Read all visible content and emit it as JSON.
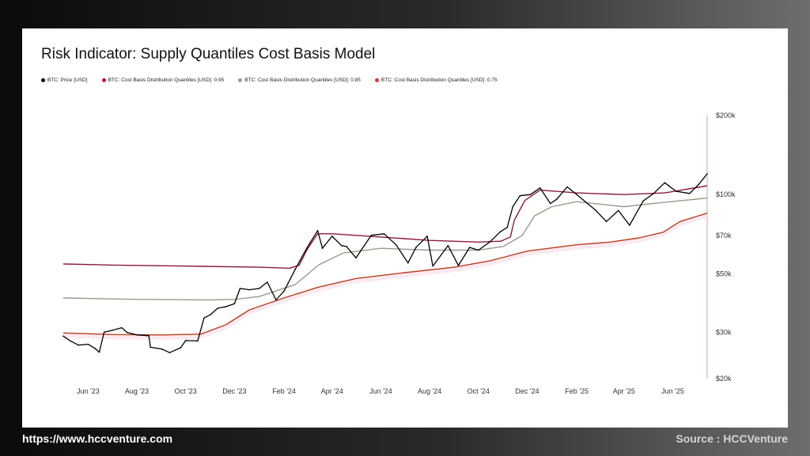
{
  "footer": {
    "url": "https://www.hccventure.com",
    "source": "Source : HCCVenture"
  },
  "colors": {
    "price": "#000000",
    "q95": "#8b1a3a",
    "q85": "#9a9a8a",
    "q75": "#b84020",
    "legend_q95": "#c0103a",
    "legend_q85": "#9a9a9a",
    "legend_q75": "#e83030"
  },
  "chart_data": {
    "type": "line",
    "title": "Risk Indicator: Supply Quantiles Cost Basis Model",
    "y_scale": "log",
    "ylim": [
      20000,
      200000
    ],
    "y_ticks": [
      {
        "value": 200000,
        "label": "$200k"
      },
      {
        "value": 100000,
        "label": "$100k"
      },
      {
        "value": 70000,
        "label": "$70k"
      },
      {
        "value": 50000,
        "label": "$50k"
      },
      {
        "value": 30000,
        "label": "$30k"
      },
      {
        "value": 20000,
        "label": "$20k"
      }
    ],
    "x_range": [
      "2023-05-01",
      "2025-07-14"
    ],
    "x_ticks": [
      {
        "date": "2023-06-01",
        "label": "Jun '23"
      },
      {
        "date": "2023-08-01",
        "label": "Aug '23"
      },
      {
        "date": "2023-10-01",
        "label": "Oct '23"
      },
      {
        "date": "2023-12-01",
        "label": "Dec '23"
      },
      {
        "date": "2024-02-01",
        "label": "Feb '24"
      },
      {
        "date": "2024-04-01",
        "label": "Apr '24"
      },
      {
        "date": "2024-06-01",
        "label": "Jun '24"
      },
      {
        "date": "2024-08-01",
        "label": "Aug '24"
      },
      {
        "date": "2024-10-01",
        "label": "Oct '24"
      },
      {
        "date": "2024-12-01",
        "label": "Dec '24"
      },
      {
        "date": "2025-02-01",
        "label": "Feb '25"
      },
      {
        "date": "2025-04-01",
        "label": "Apr '25"
      },
      {
        "date": "2025-06-01",
        "label": "Jun '25"
      }
    ],
    "legend_placement": "top-left",
    "grid": false,
    "series": [
      {
        "name": "BTC: Price [USD]",
        "color_key": "price",
        "points": [
          [
            "2023-05-01",
            29000
          ],
          [
            "2023-05-10",
            27800
          ],
          [
            "2023-05-20",
            26800
          ],
          [
            "2023-06-01",
            27000
          ],
          [
            "2023-06-10",
            26000
          ],
          [
            "2023-06-15",
            25200
          ],
          [
            "2023-06-21",
            30000
          ],
          [
            "2023-07-01",
            30500
          ],
          [
            "2023-07-13",
            31200
          ],
          [
            "2023-07-20",
            29900
          ],
          [
            "2023-08-01",
            29300
          ],
          [
            "2023-08-16",
            29100
          ],
          [
            "2023-08-18",
            26300
          ],
          [
            "2023-09-01",
            25900
          ],
          [
            "2023-09-11",
            25100
          ],
          [
            "2023-09-25",
            26200
          ],
          [
            "2023-10-01",
            27900
          ],
          [
            "2023-10-16",
            27800
          ],
          [
            "2023-10-24",
            34000
          ],
          [
            "2023-11-01",
            35000
          ],
          [
            "2023-11-10",
            37000
          ],
          [
            "2023-11-20",
            37500
          ],
          [
            "2023-12-01",
            38500
          ],
          [
            "2023-12-08",
            44000
          ],
          [
            "2023-12-20",
            43500
          ],
          [
            "2024-01-01",
            44000
          ],
          [
            "2024-01-11",
            46500
          ],
          [
            "2024-01-22",
            39800
          ],
          [
            "2024-02-01",
            43000
          ],
          [
            "2024-02-15",
            52000
          ],
          [
            "2024-02-28",
            61500
          ],
          [
            "2024-03-05",
            66000
          ],
          [
            "2024-03-14",
            73000
          ],
          [
            "2024-03-20",
            62500
          ],
          [
            "2024-04-01",
            69500
          ],
          [
            "2024-04-13",
            64000
          ],
          [
            "2024-04-19",
            63500
          ],
          [
            "2024-05-01",
            57500
          ],
          [
            "2024-05-20",
            70000
          ],
          [
            "2024-06-05",
            71000
          ],
          [
            "2024-06-20",
            64500
          ],
          [
            "2024-07-05",
            55000
          ],
          [
            "2024-07-15",
            63000
          ],
          [
            "2024-07-29",
            69500
          ],
          [
            "2024-08-05",
            53500
          ],
          [
            "2024-08-24",
            64000
          ],
          [
            "2024-09-06",
            53800
          ],
          [
            "2024-09-20",
            63000
          ],
          [
            "2024-10-01",
            61500
          ],
          [
            "2024-10-15",
            66000
          ],
          [
            "2024-10-29",
            72500
          ],
          [
            "2024-11-06",
            75000
          ],
          [
            "2024-11-13",
            90000
          ],
          [
            "2024-11-22",
            99000
          ],
          [
            "2024-12-05",
            100000
          ],
          [
            "2024-12-17",
            106000
          ],
          [
            "2024-12-30",
            92500
          ],
          [
            "2025-01-07",
            96000
          ],
          [
            "2025-01-20",
            107000
          ],
          [
            "2025-02-01",
            100000
          ],
          [
            "2025-02-25",
            87000
          ],
          [
            "2025-03-10",
            79000
          ],
          [
            "2025-03-25",
            87000
          ],
          [
            "2025-04-08",
            76500
          ],
          [
            "2025-04-25",
            94500
          ],
          [
            "2025-05-08",
            101000
          ],
          [
            "2025-05-22",
            111000
          ],
          [
            "2025-06-05",
            103000
          ],
          [
            "2025-06-22",
            101000
          ],
          [
            "2025-07-03",
            109000
          ],
          [
            "2025-07-14",
            120000
          ]
        ]
      },
      {
        "name": "BTC: Cost Basis Distribution Quantiles [USD]: 0.95",
        "color_key": "q95",
        "points": [
          [
            "2023-05-01",
            54500
          ],
          [
            "2023-07-01",
            54000
          ],
          [
            "2023-10-01",
            53500
          ],
          [
            "2024-01-01",
            53000
          ],
          [
            "2024-02-08",
            52500
          ],
          [
            "2024-02-20",
            54000
          ],
          [
            "2024-03-01",
            62000
          ],
          [
            "2024-03-14",
            71000
          ],
          [
            "2024-04-01",
            71000
          ],
          [
            "2024-06-01",
            69000
          ],
          [
            "2024-08-01",
            67000
          ],
          [
            "2024-10-01",
            66000
          ],
          [
            "2024-10-29",
            66500
          ],
          [
            "2024-11-10",
            69000
          ],
          [
            "2024-11-15",
            80000
          ],
          [
            "2024-11-28",
            95000
          ],
          [
            "2024-12-17",
            104000
          ],
          [
            "2025-02-01",
            101500
          ],
          [
            "2025-04-01",
            100000
          ],
          [
            "2025-05-22",
            101500
          ],
          [
            "2025-07-14",
            108000
          ]
        ]
      },
      {
        "name": "BTC: Cost Basis Distribution Quantiles [USD]: 0.85",
        "color_key": "q85",
        "points": [
          [
            "2023-05-01",
            40500
          ],
          [
            "2023-08-01",
            40000
          ],
          [
            "2023-11-01",
            39800
          ],
          [
            "2023-12-01",
            40000
          ],
          [
            "2024-01-01",
            41000
          ],
          [
            "2024-02-15",
            45500
          ],
          [
            "2024-03-15",
            54000
          ],
          [
            "2024-04-15",
            60000
          ],
          [
            "2024-06-01",
            62500
          ],
          [
            "2024-08-01",
            61500
          ],
          [
            "2024-10-01",
            61500
          ],
          [
            "2024-11-01",
            63500
          ],
          [
            "2024-11-25",
            70000
          ],
          [
            "2024-12-10",
            83000
          ],
          [
            "2025-01-01",
            90000
          ],
          [
            "2025-02-01",
            94000
          ],
          [
            "2025-04-01",
            90000
          ],
          [
            "2025-05-15",
            93000
          ],
          [
            "2025-07-14",
            97000
          ]
        ]
      },
      {
        "name": "BTC: Cost Basis Distribution Quantiles [USD]: 0.75",
        "color_key": "q75",
        "points": [
          [
            "2023-05-01",
            29800
          ],
          [
            "2023-07-01",
            29400
          ],
          [
            "2023-09-01",
            29300
          ],
          [
            "2023-10-20",
            29500
          ],
          [
            "2023-11-20",
            32000
          ],
          [
            "2023-12-20",
            36500
          ],
          [
            "2024-02-01",
            40500
          ],
          [
            "2024-03-15",
            44500
          ],
          [
            "2024-05-01",
            48000
          ],
          [
            "2024-07-01",
            50500
          ],
          [
            "2024-09-01",
            53000
          ],
          [
            "2024-10-15",
            56000
          ],
          [
            "2024-12-01",
            61000
          ],
          [
            "2025-02-01",
            64500
          ],
          [
            "2025-03-15",
            66000
          ],
          [
            "2025-04-20",
            68500
          ],
          [
            "2025-05-20",
            72000
          ],
          [
            "2025-06-10",
            79000
          ],
          [
            "2025-07-14",
            85000
          ]
        ]
      }
    ]
  }
}
